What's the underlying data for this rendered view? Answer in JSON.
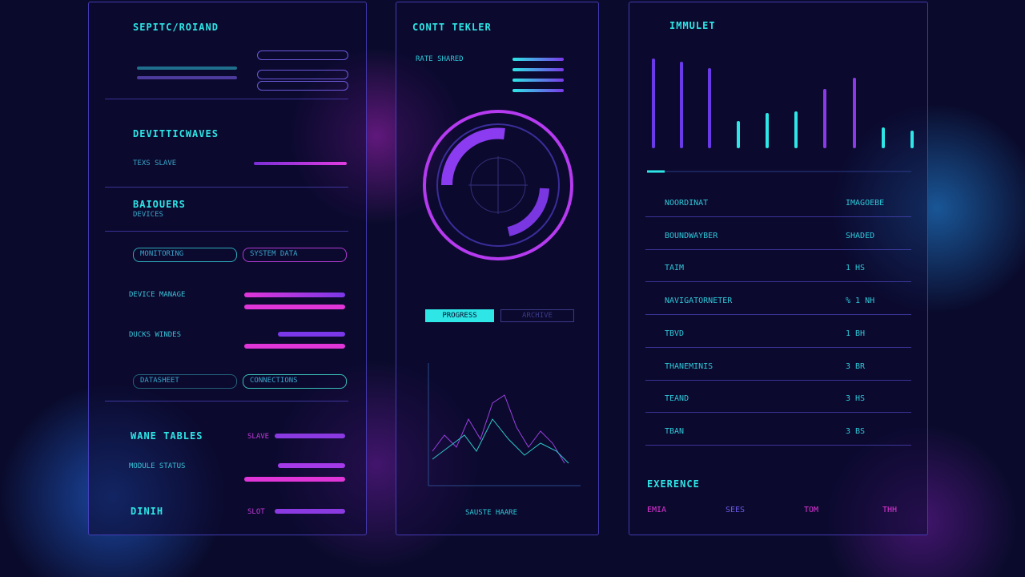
{
  "left": {
    "title": "SEPITC/ROIAND",
    "sections": [
      {
        "title": "DEVITTICWAVES",
        "label": "TEXS SLAVE"
      },
      {
        "title": "BAIOUERS",
        "label": "DEVICES"
      },
      {
        "title": "WANE TABLES",
        "label": "SLAVE"
      },
      {
        "title": "DINIH",
        "label": "SLOT"
      }
    ],
    "rows": [
      "DEVICE MANAGE",
      "DUCKS WINDES",
      "MODULE STATUS"
    ],
    "fields": [
      "MONITORING",
      "SYSTEM DATA",
      "DATASHEET",
      "CONNECTIONS"
    ]
  },
  "middle": {
    "title": "CONTT TEKLER",
    "subtitle": "RATE SHARED",
    "buttons": [
      "PROGRESS",
      "ARCHIVE"
    ],
    "footer": "SAUSTE HAARE"
  },
  "right": {
    "title": "IMMULET",
    "rows": [
      {
        "label": "NOORDINAT",
        "code": "IMAGOEBE"
      },
      {
        "label": "BOUNDWAYBER",
        "code": "SHADED"
      },
      {
        "label": "TAIM",
        "code": "1 HS"
      },
      {
        "label": "NAVIGATORNETER",
        "code": "% 1 NH"
      },
      {
        "label": "TBVD",
        "code": "1 BH"
      },
      {
        "label": "THANEMINIS",
        "code": "3 BR"
      },
      {
        "label": "TEAND",
        "code": "3 HS"
      },
      {
        "label": "TBAN",
        "code": "3 BS"
      }
    ],
    "footer": {
      "title": "EXERENCE",
      "stats": [
        "EMIA",
        "SEES",
        "TOM",
        "THH"
      ]
    }
  }
}
